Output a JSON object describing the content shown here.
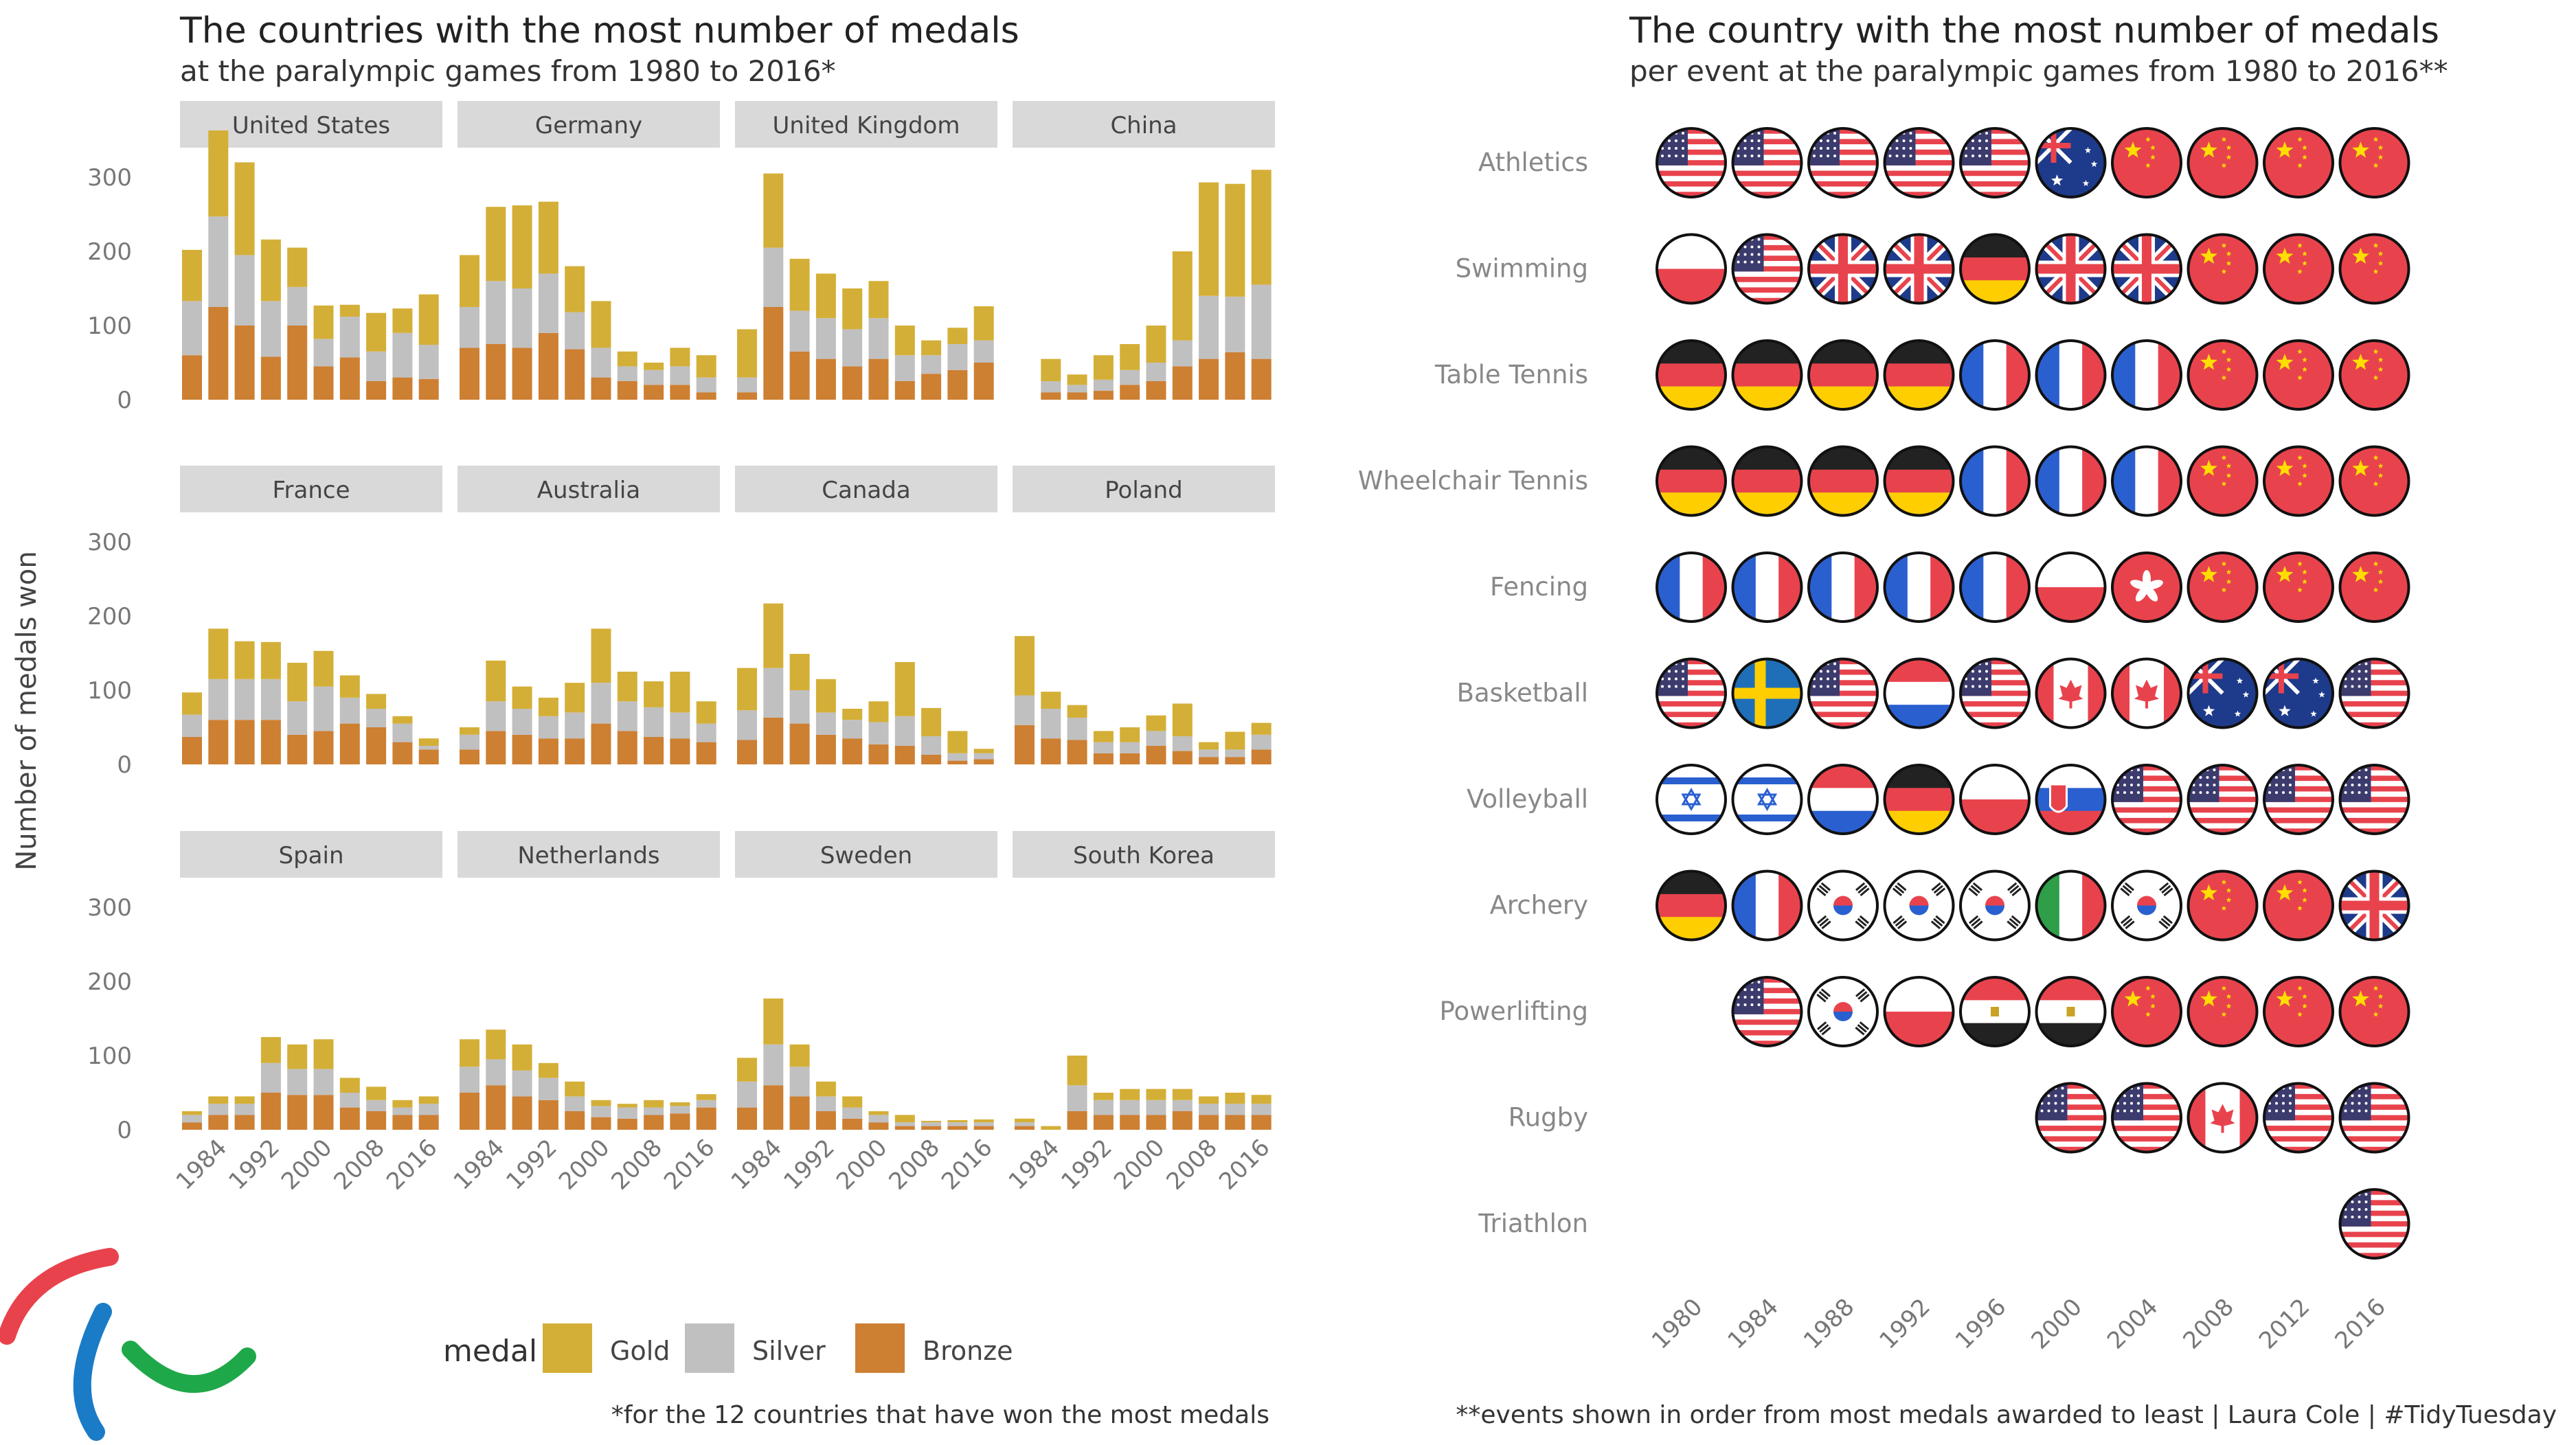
{
  "left": {
    "title": "The countries with the most number of medals",
    "subtitle": "at the paralympic games from 1980 to 2016*",
    "ylabel": "Number of medals won",
    "caption": "*for the 12 countries that have won the most medals",
    "legend": {
      "title": "medal",
      "items": [
        {
          "label": "Gold",
          "color": "#D4AF37"
        },
        {
          "label": "Silver",
          "color": "#C0C0C0"
        },
        {
          "label": "Bronze",
          "color": "#CD7F32"
        }
      ]
    }
  },
  "right": {
    "title": "The country with the most number of medals",
    "subtitle": "per event at the paralympic games from 1980 to 2016**",
    "caption": "**events shown in order from most medals awarded to least | Laura Cole | #TidyTuesday"
  },
  "chart_data": [
    {
      "type": "bar",
      "stacked": true,
      "x": [
        1980,
        1984,
        1988,
        1992,
        1996,
        2000,
        2004,
        2008,
        2012,
        2016
      ],
      "x_tick_labels": [
        "1984",
        "1992",
        "2000",
        "2008",
        "2016"
      ],
      "y_ticks": [
        0,
        100,
        200,
        300
      ],
      "ylim": [
        0,
        380
      ],
      "stack_order": [
        "Bronze",
        "Silver",
        "Gold"
      ],
      "colors": {
        "Gold": "#D4AF37",
        "Silver": "#C0C0C0",
        "Bronze": "#CD7F32"
      },
      "panels": [
        {
          "country": "United States",
          "Bronze": [
            60,
            125,
            100,
            58,
            100,
            45,
            57,
            25,
            30,
            28
          ],
          "Silver": [
            73,
            122,
            95,
            75,
            52,
            37,
            55,
            40,
            60,
            46
          ],
          "Gold": [
            69,
            116,
            125,
            83,
            53,
            45,
            16,
            52,
            33,
            68
          ]
        },
        {
          "country": "Germany",
          "Bronze": [
            70,
            75,
            70,
            90,
            68,
            30,
            25,
            20,
            20,
            10
          ],
          "Silver": [
            55,
            85,
            80,
            80,
            50,
            40,
            20,
            20,
            25,
            20
          ],
          "Gold": [
            70,
            100,
            112,
            97,
            62,
            63,
            20,
            10,
            25,
            30
          ]
        },
        {
          "country": "United Kingdom",
          "Bronze": [
            10,
            125,
            65,
            55,
            45,
            55,
            25,
            35,
            40,
            50
          ],
          "Silver": [
            20,
            80,
            55,
            55,
            50,
            55,
            35,
            25,
            35,
            30
          ],
          "Gold": [
            65,
            100,
            70,
            60,
            55,
            50,
            40,
            20,
            22,
            46
          ]
        },
        {
          "country": "China",
          "Bronze": [
            0,
            10,
            10,
            12,
            20,
            25,
            45,
            55,
            64,
            55
          ],
          "Silver": [
            0,
            15,
            10,
            15,
            20,
            25,
            35,
            85,
            75,
            100
          ],
          "Gold": [
            0,
            30,
            14,
            33,
            35,
            50,
            120,
            153,
            152,
            155
          ]
        },
        {
          "country": "France",
          "Bronze": [
            37,
            60,
            60,
            60,
            40,
            45,
            55,
            50,
            30,
            20
          ],
          "Silver": [
            30,
            55,
            55,
            55,
            45,
            60,
            35,
            25,
            25,
            5
          ],
          "Gold": [
            30,
            68,
            51,
            50,
            52,
            48,
            30,
            20,
            10,
            10
          ]
        },
        {
          "country": "Australia",
          "Bronze": [
            20,
            45,
            40,
            35,
            35,
            55,
            45,
            37,
            35,
            30
          ],
          "Silver": [
            20,
            40,
            35,
            30,
            35,
            55,
            40,
            40,
            35,
            25
          ],
          "Gold": [
            10,
            55,
            30,
            25,
            40,
            73,
            40,
            35,
            55,
            30
          ]
        },
        {
          "country": "Canada",
          "Bronze": [
            33,
            63,
            55,
            40,
            35,
            27,
            25,
            13,
            5,
            7
          ],
          "Silver": [
            40,
            67,
            45,
            30,
            25,
            30,
            40,
            25,
            10,
            8
          ],
          "Gold": [
            57,
            87,
            49,
            45,
            15,
            28,
            73,
            38,
            30,
            6
          ]
        },
        {
          "country": "Poland",
          "Bronze": [
            53,
            35,
            33,
            15,
            15,
            25,
            18,
            10,
            10,
            20
          ],
          "Silver": [
            40,
            40,
            30,
            15,
            15,
            20,
            20,
            10,
            10,
            20
          ],
          "Gold": [
            80,
            23,
            17,
            15,
            20,
            21,
            44,
            10,
            24,
            16
          ]
        },
        {
          "country": "Spain",
          "Bronze": [
            10,
            20,
            20,
            50,
            47,
            47,
            30,
            25,
            20,
            20
          ],
          "Silver": [
            10,
            15,
            15,
            40,
            35,
            35,
            20,
            15,
            10,
            15
          ],
          "Gold": [
            5,
            10,
            10,
            35,
            33,
            40,
            20,
            18,
            10,
            10
          ]
        },
        {
          "country": "Netherlands",
          "Bronze": [
            50,
            60,
            45,
            40,
            25,
            17,
            15,
            20,
            22,
            30
          ],
          "Silver": [
            35,
            35,
            35,
            30,
            20,
            15,
            15,
            10,
            10,
            10
          ],
          "Gold": [
            37,
            40,
            35,
            20,
            20,
            8,
            5,
            10,
            5,
            8
          ]
        },
        {
          "country": "Sweden",
          "Bronze": [
            30,
            60,
            45,
            25,
            15,
            10,
            5,
            5,
            5,
            5
          ],
          "Silver": [
            35,
            55,
            40,
            20,
            15,
            10,
            5,
            5,
            5,
            5
          ],
          "Gold": [
            32,
            62,
            30,
            20,
            15,
            5,
            10,
            2,
            3,
            4
          ]
        },
        {
          "country": "South Korea",
          "Bronze": [
            5,
            0,
            25,
            20,
            20,
            20,
            25,
            20,
            20,
            20
          ],
          "Silver": [
            5,
            0,
            35,
            20,
            20,
            20,
            15,
            15,
            15,
            15
          ],
          "Gold": [
            5,
            5,
            40,
            10,
            15,
            15,
            15,
            10,
            15,
            12
          ]
        }
      ]
    },
    {
      "type": "table",
      "title": "The country with the most number of medals",
      "subtitle": "per event at the paralympic games from 1980 to 2016**",
      "columns": [
        "1980",
        "1984",
        "1988",
        "1992",
        "1996",
        "2000",
        "2004",
        "2008",
        "2012",
        "2016"
      ],
      "rows": [
        {
          "event": "Athletics",
          "values": [
            "USA",
            "USA",
            "USA",
            "USA",
            "USA",
            "AUS",
            "CHN",
            "CHN",
            "CHN",
            "CHN"
          ]
        },
        {
          "event": "Swimming",
          "values": [
            "POL",
            "USA",
            "GBR",
            "GBR",
            "GER",
            "GBR",
            "GBR",
            "CHN",
            "CHN",
            "CHN"
          ]
        },
        {
          "event": "Table Tennis",
          "values": [
            "GER",
            "GER",
            "GER",
            "GER",
            "FRA",
            "FRA",
            "FRA",
            "CHN",
            "CHN",
            "CHN"
          ]
        },
        {
          "event": "Wheelchair Tennis",
          "values": [
            "GER",
            "GER",
            "GER",
            "GER",
            "FRA",
            "FRA",
            "FRA",
            "CHN",
            "CHN",
            "CHN"
          ]
        },
        {
          "event": "Fencing",
          "values": [
            "FRA",
            "FRA",
            "FRA",
            "FRA",
            "FRA",
            "POL",
            "HKG",
            "CHN",
            "CHN",
            "CHN"
          ]
        },
        {
          "event": "Basketball",
          "values": [
            "USA",
            "SWE",
            "USA",
            "NED",
            "USA",
            "CAN",
            "CAN",
            "AUS",
            "AUS",
            "USA"
          ]
        },
        {
          "event": "Volleyball",
          "values": [
            "ISR",
            "ISR",
            "NED",
            "GER",
            "POL",
            "SVK",
            "USA",
            "USA",
            "USA",
            "USA"
          ]
        },
        {
          "event": "Archery",
          "values": [
            "GER",
            "FRA",
            "KOR",
            "KOR",
            "KOR",
            "ITA",
            "KOR",
            "CHN",
            "CHN",
            "GBR"
          ]
        },
        {
          "event": "Powerlifting",
          "values": [
            "",
            "USA",
            "KOR",
            "POL",
            "EGY",
            "EGY",
            "CHN",
            "CHN",
            "CHN",
            "CHN"
          ]
        },
        {
          "event": "Rugby",
          "values": [
            "",
            "",
            "",
            "",
            "",
            "USA",
            "USA",
            "CAN",
            "USA",
            "USA"
          ]
        },
        {
          "event": "Triathlon",
          "values": [
            "",
            "",
            "",
            "",
            "",
            "",
            "",
            "",
            "",
            "USA"
          ]
        }
      ]
    }
  ]
}
